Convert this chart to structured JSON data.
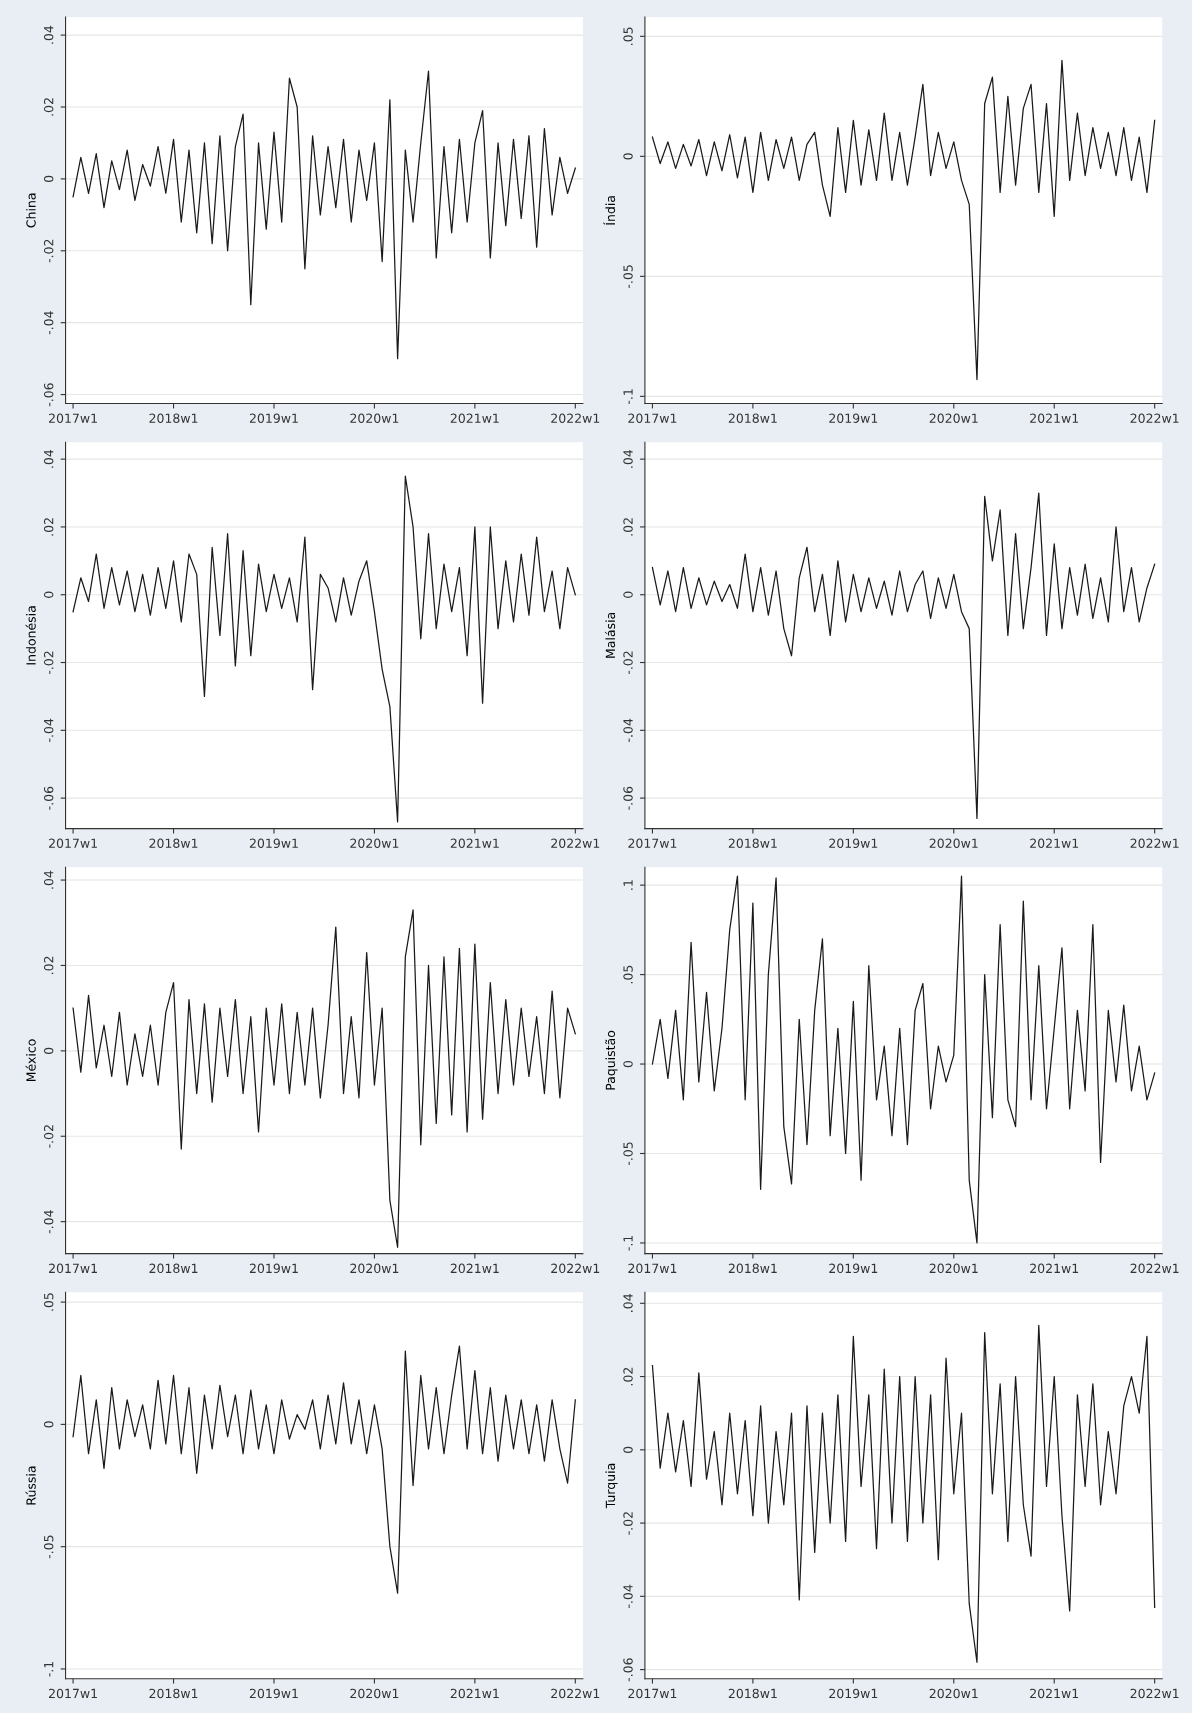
{
  "chart_data": [
    {
      "type": "line",
      "ylabel": "China",
      "color": "#1a1a1a",
      "grid": "y",
      "ylim": [
        -0.0625,
        0.045
      ],
      "yticks": [
        {
          "value": 0.04,
          "label": ".04"
        },
        {
          "value": 0.02,
          "label": ".02"
        },
        0,
        {
          "value": -0.02,
          "label": "-.02"
        },
        {
          "value": -0.04,
          "label": "-.04"
        },
        {
          "value": -0.06,
          "label": "-.06"
        }
      ],
      "categories": [
        "2017w1",
        null,
        null,
        null,
        null,
        null,
        null,
        null,
        null,
        null,
        null,
        null,
        null,
        "2018w1",
        null,
        null,
        null,
        null,
        null,
        null,
        null,
        null,
        null,
        null,
        null,
        null,
        "2019w1",
        null,
        null,
        null,
        null,
        null,
        null,
        null,
        null,
        null,
        null,
        null,
        null,
        "2020w1",
        null,
        null,
        null,
        null,
        null,
        null,
        null,
        null,
        null,
        null,
        null,
        null,
        "2021w1",
        null,
        null,
        null,
        null,
        null,
        null,
        null,
        null,
        null,
        null,
        null,
        null,
        "2022w1"
      ],
      "values": [
        -0.005,
        0.006,
        -0.004,
        0.007,
        -0.008,
        0.005,
        -0.003,
        0.008,
        -0.006,
        0.004,
        -0.002,
        0.009,
        -0.004,
        0.011,
        -0.012,
        0.008,
        -0.015,
        0.01,
        -0.018,
        0.012,
        -0.02,
        0.009,
        0.018,
        -0.035,
        0.01,
        -0.014,
        0.013,
        -0.012,
        0.028,
        0.02,
        -0.025,
        0.012,
        -0.01,
        0.009,
        -0.008,
        0.011,
        -0.012,
        0.008,
        -0.006,
        0.01,
        -0.023,
        0.022,
        -0.05,
        0.008,
        -0.012,
        0.01,
        0.03,
        -0.022,
        0.009,
        -0.015,
        0.011,
        -0.012,
        0.01,
        0.019,
        -0.022,
        0.01,
        -0.013,
        0.011,
        -0.011,
        0.012,
        -0.019,
        0.014,
        -0.01,
        0.006,
        -0.004,
        0.003
      ]
    },
    {
      "type": "line",
      "ylabel": "Índia",
      "color": "#1a1a1a",
      "grid": "y",
      "ylim": [
        -0.103,
        0.058
      ],
      "yticks": [
        {
          "value": 0.05,
          "label": ".05"
        },
        0,
        {
          "value": -0.05,
          "label": "-.05"
        },
        {
          "value": -0.1,
          "label": "-.1"
        }
      ],
      "categories": [
        "2017w1",
        null,
        null,
        null,
        null,
        null,
        null,
        null,
        null,
        null,
        null,
        null,
        null,
        "2018w1",
        null,
        null,
        null,
        null,
        null,
        null,
        null,
        null,
        null,
        null,
        null,
        null,
        "2019w1",
        null,
        null,
        null,
        null,
        null,
        null,
        null,
        null,
        null,
        null,
        null,
        null,
        "2020w1",
        null,
        null,
        null,
        null,
        null,
        null,
        null,
        null,
        null,
        null,
        null,
        null,
        "2021w1",
        null,
        null,
        null,
        null,
        null,
        null,
        null,
        null,
        null,
        null,
        null,
        null,
        "2022w1"
      ],
      "values": [
        0.008,
        -0.003,
        0.006,
        -0.005,
        0.005,
        -0.004,
        0.007,
        -0.008,
        0.006,
        -0.006,
        0.009,
        -0.009,
        0.008,
        -0.015,
        0.01,
        -0.01,
        0.007,
        -0.005,
        0.008,
        -0.01,
        0.005,
        0.01,
        -0.012,
        -0.025,
        0.012,
        -0.015,
        0.015,
        -0.012,
        0.011,
        -0.01,
        0.018,
        -0.01,
        0.01,
        -0.012,
        0.008,
        0.03,
        -0.008,
        0.01,
        -0.005,
        0.006,
        -0.01,
        -0.02,
        -0.093,
        0.022,
        0.033,
        -0.015,
        0.025,
        -0.012,
        0.02,
        0.03,
        -0.015,
        0.022,
        -0.025,
        0.04,
        -0.01,
        0.018,
        -0.008,
        0.012,
        -0.005,
        0.01,
        -0.008,
        0.012,
        -0.01,
        0.008,
        -0.015,
        0.015
      ]
    },
    {
      "type": "line",
      "ylabel": "Indonésia",
      "color": "#1a1a1a",
      "grid": "y",
      "ylim": [
        -0.069,
        0.045
      ],
      "yticks": [
        {
          "value": 0.04,
          "label": ".04"
        },
        {
          "value": 0.02,
          "label": ".02"
        },
        0,
        {
          "value": -0.02,
          "label": "-.02"
        },
        {
          "value": -0.04,
          "label": "-.04"
        },
        {
          "value": -0.06,
          "label": "-.06"
        }
      ],
      "categories": [
        "2017w1",
        null,
        null,
        null,
        null,
        null,
        null,
        null,
        null,
        null,
        null,
        null,
        null,
        "2018w1",
        null,
        null,
        null,
        null,
        null,
        null,
        null,
        null,
        null,
        null,
        null,
        null,
        "2019w1",
        null,
        null,
        null,
        null,
        null,
        null,
        null,
        null,
        null,
        null,
        null,
        null,
        "2020w1",
        null,
        null,
        null,
        null,
        null,
        null,
        null,
        null,
        null,
        null,
        null,
        null,
        "2021w1",
        null,
        null,
        null,
        null,
        null,
        null,
        null,
        null,
        null,
        null,
        null,
        null,
        "2022w1"
      ],
      "values": [
        -0.005,
        0.005,
        -0.002,
        0.012,
        -0.004,
        0.008,
        -0.003,
        0.007,
        -0.005,
        0.006,
        -0.006,
        0.008,
        -0.004,
        0.01,
        -0.008,
        0.012,
        0.006,
        -0.03,
        0.014,
        -0.012,
        0.018,
        -0.021,
        0.013,
        -0.018,
        0.009,
        -0.005,
        0.006,
        -0.004,
        0.005,
        -0.008,
        0.017,
        -0.028,
        0.006,
        0.002,
        -0.008,
        0.005,
        -0.006,
        0.004,
        0.01,
        -0.005,
        -0.022,
        -0.033,
        -0.067,
        0.035,
        0.02,
        -0.013,
        0.018,
        -0.01,
        0.009,
        -0.005,
        0.008,
        -0.018,
        0.02,
        -0.032,
        0.02,
        -0.01,
        0.01,
        -0.008,
        0.012,
        -0.006,
        0.017,
        -0.005,
        0.007,
        -0.01,
        0.008,
        0
      ]
    },
    {
      "type": "line",
      "ylabel": "Malásia",
      "color": "#1a1a1a",
      "grid": "y",
      "ylim": [
        -0.069,
        0.045
      ],
      "yticks": [
        {
          "value": 0.04,
          "label": ".04"
        },
        {
          "value": 0.02,
          "label": ".02"
        },
        0,
        {
          "value": -0.02,
          "label": "-.02"
        },
        {
          "value": -0.04,
          "label": "-.04"
        },
        {
          "value": -0.06,
          "label": "-.06"
        }
      ],
      "categories": [
        "2017w1",
        null,
        null,
        null,
        null,
        null,
        null,
        null,
        null,
        null,
        null,
        null,
        null,
        "2018w1",
        null,
        null,
        null,
        null,
        null,
        null,
        null,
        null,
        null,
        null,
        null,
        null,
        "2019w1",
        null,
        null,
        null,
        null,
        null,
        null,
        null,
        null,
        null,
        null,
        null,
        null,
        "2020w1",
        null,
        null,
        null,
        null,
        null,
        null,
        null,
        null,
        null,
        null,
        null,
        null,
        "2021w1",
        null,
        null,
        null,
        null,
        null,
        null,
        null,
        null,
        null,
        null,
        null,
        null,
        "2022w1"
      ],
      "values": [
        0.008,
        -0.003,
        0.007,
        -0.005,
        0.008,
        -0.004,
        0.005,
        -0.003,
        0.004,
        -0.002,
        0.003,
        -0.004,
        0.012,
        -0.005,
        0.008,
        -0.006,
        0.007,
        -0.01,
        -0.018,
        0.005,
        0.014,
        -0.005,
        0.006,
        -0.012,
        0.01,
        -0.008,
        0.006,
        -0.005,
        0.005,
        -0.004,
        0.004,
        -0.006,
        0.007,
        -0.005,
        0.003,
        0.007,
        -0.007,
        0.005,
        -0.004,
        0.006,
        -0.005,
        -0.01,
        -0.066,
        0.029,
        0.01,
        0.025,
        -0.012,
        0.018,
        -0.01,
        0.008,
        0.03,
        -0.012,
        0.015,
        -0.01,
        0.008,
        -0.006,
        0.009,
        -0.007,
        0.005,
        -0.008,
        0.02,
        -0.005,
        0.008,
        -0.008,
        0.002,
        0.009
      ]
    },
    {
      "type": "line",
      "ylabel": "México",
      "color": "#1a1a1a",
      "grid": "y",
      "ylim": [
        -0.0475,
        0.043
      ],
      "yticks": [
        {
          "value": 0.04,
          "label": ".04"
        },
        {
          "value": 0.02,
          "label": ".02"
        },
        0,
        {
          "value": -0.02,
          "label": "-.02"
        },
        {
          "value": -0.04,
          "label": "-.04"
        }
      ],
      "categories": [
        "2017w1",
        null,
        null,
        null,
        null,
        null,
        null,
        null,
        null,
        null,
        null,
        null,
        null,
        "2018w1",
        null,
        null,
        null,
        null,
        null,
        null,
        null,
        null,
        null,
        null,
        null,
        null,
        "2019w1",
        null,
        null,
        null,
        null,
        null,
        null,
        null,
        null,
        null,
        null,
        null,
        null,
        "2020w1",
        null,
        null,
        null,
        null,
        null,
        null,
        null,
        null,
        null,
        null,
        null,
        null,
        "2021w1",
        null,
        null,
        null,
        null,
        null,
        null,
        null,
        null,
        null,
        null,
        null,
        null,
        "2022w1"
      ],
      "values": [
        0.01,
        -0.005,
        0.013,
        -0.004,
        0.006,
        -0.006,
        0.009,
        -0.008,
        0.004,
        -0.006,
        0.006,
        -0.008,
        0.009,
        0.016,
        -0.023,
        0.012,
        -0.01,
        0.011,
        -0.012,
        0.01,
        -0.006,
        0.012,
        -0.01,
        0.008,
        -0.019,
        0.01,
        -0.008,
        0.011,
        -0.01,
        0.009,
        -0.008,
        0.01,
        -0.011,
        0.006,
        0.029,
        -0.01,
        0.008,
        -0.011,
        0.023,
        -0.008,
        0.01,
        -0.035,
        -0.046,
        0.022,
        0.033,
        -0.022,
        0.02,
        -0.017,
        0.022,
        -0.015,
        0.024,
        -0.019,
        0.025,
        -0.016,
        0.016,
        -0.01,
        0.012,
        -0.008,
        0.01,
        -0.006,
        0.008,
        -0.01,
        0.014,
        -0.011,
        0.01,
        0.004
      ]
    },
    {
      "type": "line",
      "ylabel": "Paquistão",
      "color": "#1a1a1a",
      "grid": "y",
      "ylim": [
        -0.106,
        0.11
      ],
      "yticks": [
        {
          "value": 0.1,
          "label": ".1"
        },
        {
          "value": 0.05,
          "label": ".05"
        },
        0,
        {
          "value": -0.05,
          "label": "-.05"
        },
        {
          "value": -0.1,
          "label": "-.1"
        }
      ],
      "categories": [
        "2017w1",
        null,
        null,
        null,
        null,
        null,
        null,
        null,
        null,
        null,
        null,
        null,
        null,
        "2018w1",
        null,
        null,
        null,
        null,
        null,
        null,
        null,
        null,
        null,
        null,
        null,
        null,
        "2019w1",
        null,
        null,
        null,
        null,
        null,
        null,
        null,
        null,
        null,
        null,
        null,
        null,
        "2020w1",
        null,
        null,
        null,
        null,
        null,
        null,
        null,
        null,
        null,
        null,
        null,
        null,
        "2021w1",
        null,
        null,
        null,
        null,
        null,
        null,
        null,
        null,
        null,
        null,
        null,
        null,
        "2022w1"
      ],
      "values": [
        0.0,
        0.025,
        -0.008,
        0.03,
        -0.02,
        0.068,
        -0.01,
        0.04,
        -0.015,
        0.02,
        0.075,
        0.105,
        -0.02,
        0.09,
        -0.07,
        0.05,
        0.104,
        -0.035,
        -0.067,
        0.025,
        -0.045,
        0.03,
        0.07,
        -0.04,
        0.02,
        -0.05,
        0.035,
        -0.065,
        0.055,
        -0.02,
        0.01,
        -0.04,
        0.02,
        -0.045,
        0.03,
        0.045,
        -0.025,
        0.01,
        -0.01,
        0.005,
        0.105,
        -0.065,
        -0.1,
        0.05,
        -0.03,
        0.078,
        -0.02,
        -0.035,
        0.091,
        -0.02,
        0.055,
        -0.025,
        0.02,
        0.065,
        -0.025,
        0.03,
        -0.015,
        0.078,
        -0.055,
        0.03,
        -0.01,
        0.033,
        -0.015,
        0.01,
        -0.02,
        -0.005
      ]
    },
    {
      "type": "line",
      "ylabel": "Rússia",
      "color": "#1a1a1a",
      "grid": "y",
      "ylim": [
        -0.104,
        0.054
      ],
      "yticks": [
        {
          "value": 0.05,
          "label": ".05"
        },
        0,
        {
          "value": -0.05,
          "label": "-.05"
        },
        {
          "value": -0.1,
          "label": "-.1"
        }
      ],
      "categories": [
        "2017w1",
        null,
        null,
        null,
        null,
        null,
        null,
        null,
        null,
        null,
        null,
        null,
        null,
        "2018w1",
        null,
        null,
        null,
        null,
        null,
        null,
        null,
        null,
        null,
        null,
        null,
        null,
        "2019w1",
        null,
        null,
        null,
        null,
        null,
        null,
        null,
        null,
        null,
        null,
        null,
        null,
        "2020w1",
        null,
        null,
        null,
        null,
        null,
        null,
        null,
        null,
        null,
        null,
        null,
        null,
        "2021w1",
        null,
        null,
        null,
        null,
        null,
        null,
        null,
        null,
        null,
        null,
        null,
        null,
        "2022w1"
      ],
      "values": [
        -0.005,
        0.02,
        -0.012,
        0.01,
        -0.018,
        0.015,
        -0.01,
        0.01,
        -0.005,
        0.008,
        -0.01,
        0.018,
        -0.008,
        0.02,
        -0.012,
        0.015,
        -0.02,
        0.012,
        -0.01,
        0.016,
        -0.005,
        0.012,
        -0.012,
        0.014,
        -0.01,
        0.008,
        -0.012,
        0.01,
        -0.006,
        0.004,
        -0.002,
        0.01,
        -0.01,
        0.012,
        -0.008,
        0.017,
        -0.008,
        0.01,
        -0.012,
        0.008,
        -0.01,
        -0.05,
        -0.069,
        0.03,
        -0.025,
        0.02,
        -0.01,
        0.015,
        -0.012,
        0.012,
        0.032,
        -0.01,
        0.022,
        -0.012,
        0.015,
        -0.015,
        0.012,
        -0.01,
        0.01,
        -0.012,
        0.008,
        -0.015,
        0.01,
        -0.01,
        -0.024,
        0.01
      ]
    },
    {
      "type": "line",
      "ylabel": "Turquia",
      "color": "#1a1a1a",
      "grid": "y",
      "ylim": [
        -0.0625,
        0.043
      ],
      "yticks": [
        {
          "value": 0.04,
          "label": ".04"
        },
        {
          "value": 0.02,
          "label": ".02"
        },
        0,
        {
          "value": -0.02,
          "label": "-.02"
        },
        {
          "value": -0.04,
          "label": "-.04"
        },
        {
          "value": -0.06,
          "label": "-.06"
        }
      ],
      "categories": [
        "2017w1",
        null,
        null,
        null,
        null,
        null,
        null,
        null,
        null,
        null,
        null,
        null,
        null,
        "2018w1",
        null,
        null,
        null,
        null,
        null,
        null,
        null,
        null,
        null,
        null,
        null,
        null,
        "2019w1",
        null,
        null,
        null,
        null,
        null,
        null,
        null,
        null,
        null,
        null,
        null,
        null,
        "2020w1",
        null,
        null,
        null,
        null,
        null,
        null,
        null,
        null,
        null,
        null,
        null,
        null,
        "2021w1",
        null,
        null,
        null,
        null,
        null,
        null,
        null,
        null,
        null,
        null,
        null,
        null,
        "2022w1"
      ],
      "values": [
        0.023,
        -0.005,
        0.01,
        -0.006,
        0.008,
        -0.01,
        0.021,
        -0.008,
        0.005,
        -0.015,
        0.01,
        -0.012,
        0.008,
        -0.018,
        0.012,
        -0.02,
        0.005,
        -0.015,
        0.01,
        -0.041,
        0.012,
        -0.028,
        0.01,
        -0.02,
        0.015,
        -0.025,
        0.031,
        -0.01,
        0.015,
        -0.027,
        0.022,
        -0.02,
        0.02,
        -0.025,
        0.02,
        -0.02,
        0.015,
        -0.03,
        0.025,
        -0.012,
        0.01,
        -0.042,
        -0.058,
        0.032,
        -0.012,
        0.018,
        -0.025,
        0.02,
        -0.015,
        -0.029,
        0.034,
        -0.01,
        0.02,
        -0.018,
        -0.044,
        0.015,
        -0.01,
        0.018,
        -0.015,
        0.005,
        -0.012,
        0.012,
        0.02,
        0.01,
        0.031,
        -0.043
      ]
    }
  ]
}
